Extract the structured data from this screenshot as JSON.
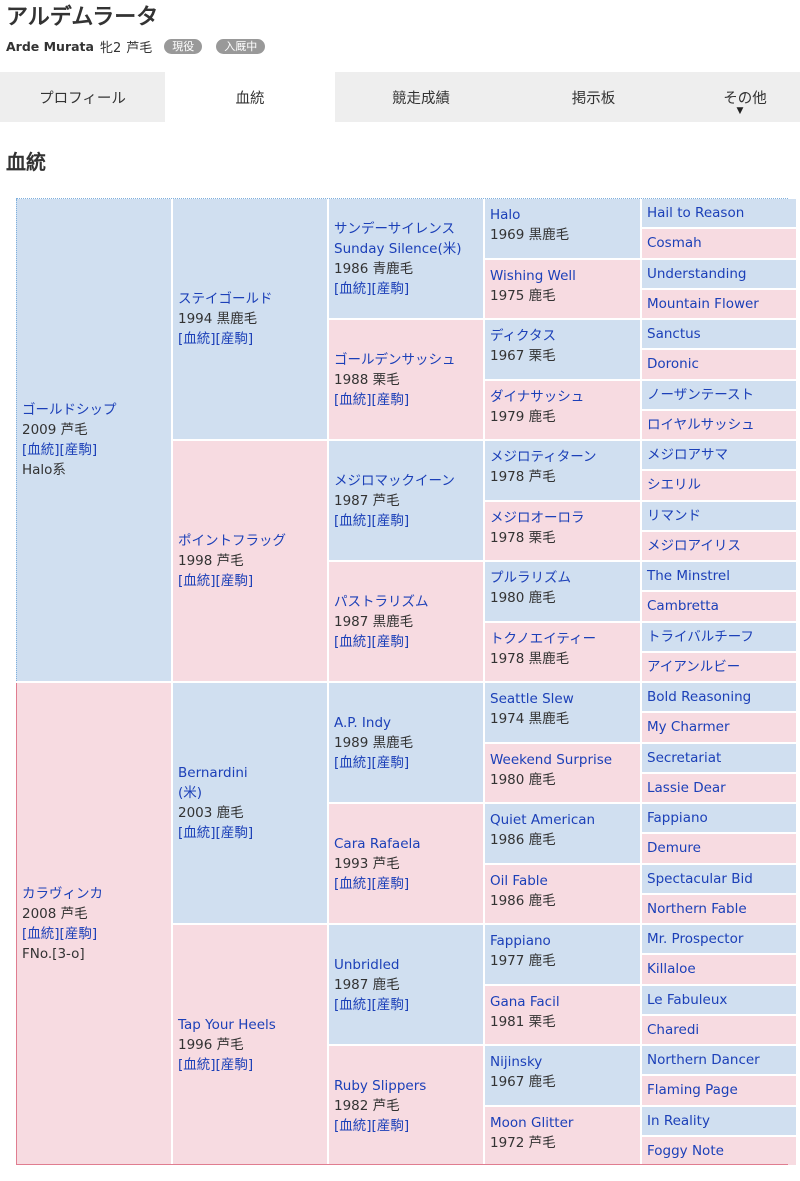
{
  "horse": {
    "name": "アルデムラータ",
    "name_en": "Arde Murata",
    "sex_age": "牝2",
    "coat": "芦毛",
    "badges": [
      "現役",
      "入厩中"
    ]
  },
  "tabs": [
    {
      "label": "プロフィール",
      "active": false
    },
    {
      "label": "血統",
      "active": true
    },
    {
      "label": "競走成績",
      "active": false
    },
    {
      "label": "掲示板",
      "active": false
    },
    {
      "label": "その他",
      "active": false,
      "caret": "▼"
    }
  ],
  "section_title": "血統",
  "pedigree": {
    "link_pedigree": "[血統]",
    "link_offspring": "[産駒]",
    "gen1": [
      {
        "name": "ゴールドシップ",
        "info": "2009 芦毛",
        "extra": "Halo系",
        "sex": "m"
      },
      {
        "name": "カラヴィンカ",
        "info": "2008 芦毛",
        "extra": "FNo.[3-o]",
        "sex": "f"
      }
    ],
    "gen2": [
      {
        "name": "ステイゴールド",
        "info": "1994 黒鹿毛",
        "sex": "m"
      },
      {
        "name": "ポイントフラッグ",
        "info": "1998 芦毛",
        "sex": "f"
      },
      {
        "name": "Bernardini",
        "name2": "(米)",
        "info": "2003 鹿毛",
        "sex": "m"
      },
      {
        "name": "Tap Your Heels",
        "info": "1996 芦毛",
        "sex": "f"
      }
    ],
    "gen3": [
      {
        "name": "サンデーサイレンス",
        "name2": "Sunday Silence(米)",
        "info": "1986 青鹿毛",
        "sex": "m"
      },
      {
        "name": "ゴールデンサッシュ",
        "info": "1988 栗毛",
        "sex": "f"
      },
      {
        "name": "メジロマックイーン",
        "info": "1987 芦毛",
        "sex": "m"
      },
      {
        "name": "パストラリズム",
        "info": "1987 黒鹿毛",
        "sex": "f"
      },
      {
        "name": "A.P. Indy",
        "info": "1989 黒鹿毛",
        "sex": "m"
      },
      {
        "name": "Cara Rafaela",
        "info": "1993 芦毛",
        "sex": "f"
      },
      {
        "name": "Unbridled",
        "info": "1987 鹿毛",
        "sex": "m"
      },
      {
        "name": "Ruby Slippers",
        "info": "1982 芦毛",
        "sex": "f"
      }
    ],
    "gen4": [
      {
        "name": "Halo",
        "info": "1969 黒鹿毛",
        "sex": "m"
      },
      {
        "name": "Wishing Well",
        "info": "1975 鹿毛",
        "sex": "f"
      },
      {
        "name": "ディクタス",
        "info": "1967 栗毛",
        "sex": "m"
      },
      {
        "name": "ダイナサッシュ",
        "info": "1979 鹿毛",
        "sex": "f"
      },
      {
        "name": "メジロティターン",
        "info": "1978 芦毛",
        "sex": "m"
      },
      {
        "name": "メジロオーロラ",
        "info": "1978 栗毛",
        "sex": "f"
      },
      {
        "name": "プルラリズム",
        "info": "1980 鹿毛",
        "sex": "m"
      },
      {
        "name": "トクノエイティー",
        "info": "1978 黒鹿毛",
        "sex": "f"
      },
      {
        "name": "Seattle Slew",
        "info": "1974 黒鹿毛",
        "sex": "m"
      },
      {
        "name": "Weekend Surprise",
        "info": "1980 鹿毛",
        "sex": "f"
      },
      {
        "name": "Quiet American",
        "info": "1986 鹿毛",
        "sex": "m"
      },
      {
        "name": "Oil Fable",
        "info": "1986 鹿毛",
        "sex": "f"
      },
      {
        "name": "Fappiano",
        "info": "1977 鹿毛",
        "sex": "m"
      },
      {
        "name": "Gana Facil",
        "info": "1981 栗毛",
        "sex": "f"
      },
      {
        "name": "Nijinsky",
        "info": "1967 鹿毛",
        "sex": "m"
      },
      {
        "name": "Moon Glitter",
        "info": "1972 芦毛",
        "sex": "f"
      }
    ],
    "gen5": [
      "Hail to Reason",
      "Cosmah",
      "Understanding",
      "Mountain Flower",
      "Sanctus",
      "Doronic",
      "ノーザンテースト",
      "ロイヤルサッシュ",
      "メジロアサマ",
      "シエリル",
      "リマンド",
      "メジロアイリス",
      "The Minstrel",
      "Cambretta",
      "トライバルチーフ",
      "アイアンルビー",
      "Bold Reasoning",
      "My Charmer",
      "Secretariat",
      "Lassie Dear",
      "Fappiano",
      "Demure",
      "Spectacular Bid",
      "Northern Fable",
      "Mr. Prospector",
      "Killaloe",
      "Le Fabuleux",
      "Charedi",
      "Northern Dancer",
      "Flaming Page",
      "In Reality",
      "Foggy Note"
    ]
  }
}
